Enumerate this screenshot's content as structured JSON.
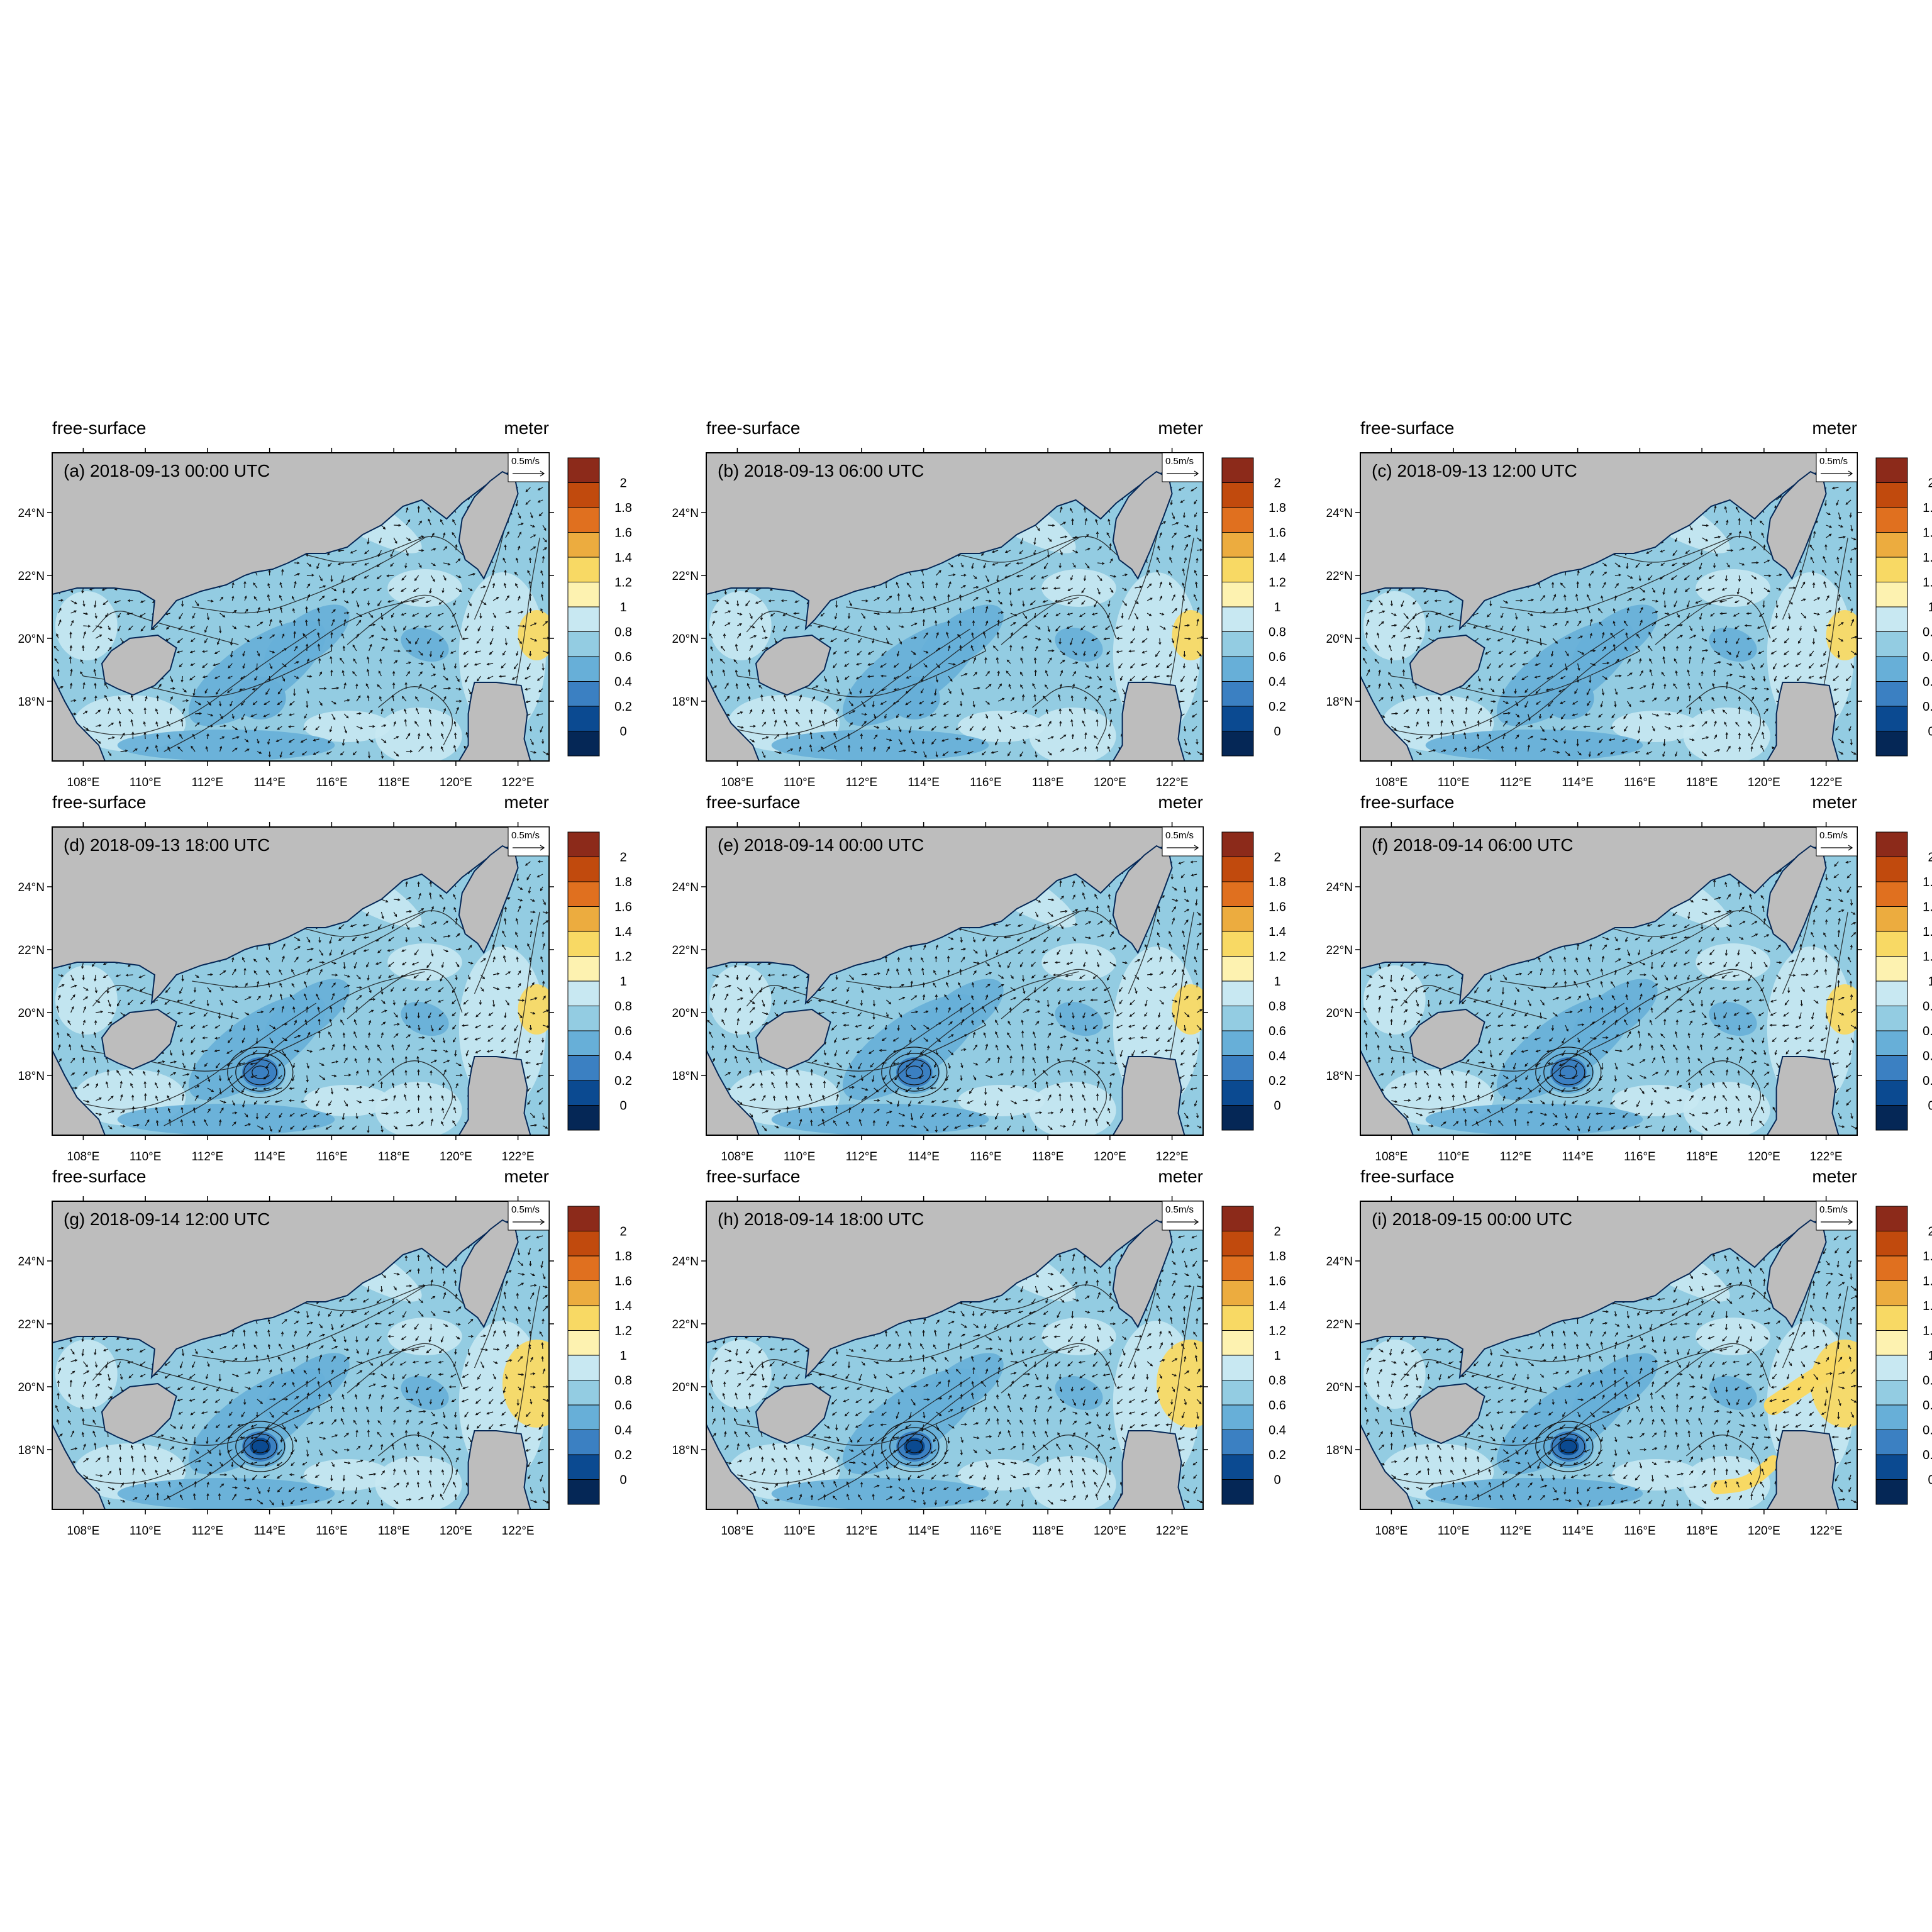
{
  "header": {
    "left_label": "free-surface",
    "right_label": "meter"
  },
  "reference_vector": {
    "label": "0.5m/s"
  },
  "axes": {
    "x_ticks": [
      "108°E",
      "110°E",
      "112°E",
      "114°E",
      "116°E",
      "118°E",
      "120°E",
      "122°E"
    ],
    "y_ticks": [
      "24°N",
      "22°N",
      "20°N",
      "18°N"
    ]
  },
  "colorbar": {
    "labels": [
      "2",
      "1.8",
      "1.6",
      "1.4",
      "1.2",
      "1",
      "0.8",
      "0.6",
      "0.4",
      "0.2",
      "0"
    ],
    "colors": [
      "#8c2a1a",
      "#c14a0d",
      "#e0701f",
      "#ecac3f",
      "#f8d964",
      "#fdf2b0",
      "#c8e8f2",
      "#93cce2",
      "#67afd8",
      "#3b80c2",
      "#0b4a91",
      "#052756"
    ]
  },
  "colors": {
    "land": "#bdbdbd",
    "water_base": "#93cce2",
    "water_light": "#c8e8f2",
    "water_mid": "#67afd8",
    "water_deep": "#3b80c2",
    "water_deepest": "#0b4a91",
    "warm": "#f8d964",
    "warm_light": "#fdf2b0",
    "coast_dark": "#052756"
  },
  "panels": [
    {
      "label": "(a) 2018-09-13 00:00 UTC",
      "eddy_level": 1
    },
    {
      "label": "(b) 2018-09-13 06:00 UTC",
      "eddy_level": 1
    },
    {
      "label": "(c) 2018-09-13 12:00 UTC",
      "eddy_level": 1
    },
    {
      "label": "(d) 2018-09-13 18:00 UTC",
      "eddy_level": 2
    },
    {
      "label": "(e) 2018-09-14 00:00 UTC",
      "eddy_level": 2
    },
    {
      "label": "(f) 2018-09-14 06:00 UTC",
      "eddy_level": 2
    },
    {
      "label": "(g) 2018-09-14 12:00 UTC",
      "eddy_level": 3
    },
    {
      "label": "(h) 2018-09-14 18:00 UTC",
      "eddy_level": 3
    },
    {
      "label": "(i) 2018-09-15 00:00 UTC",
      "eddy_level": 3
    }
  ]
}
